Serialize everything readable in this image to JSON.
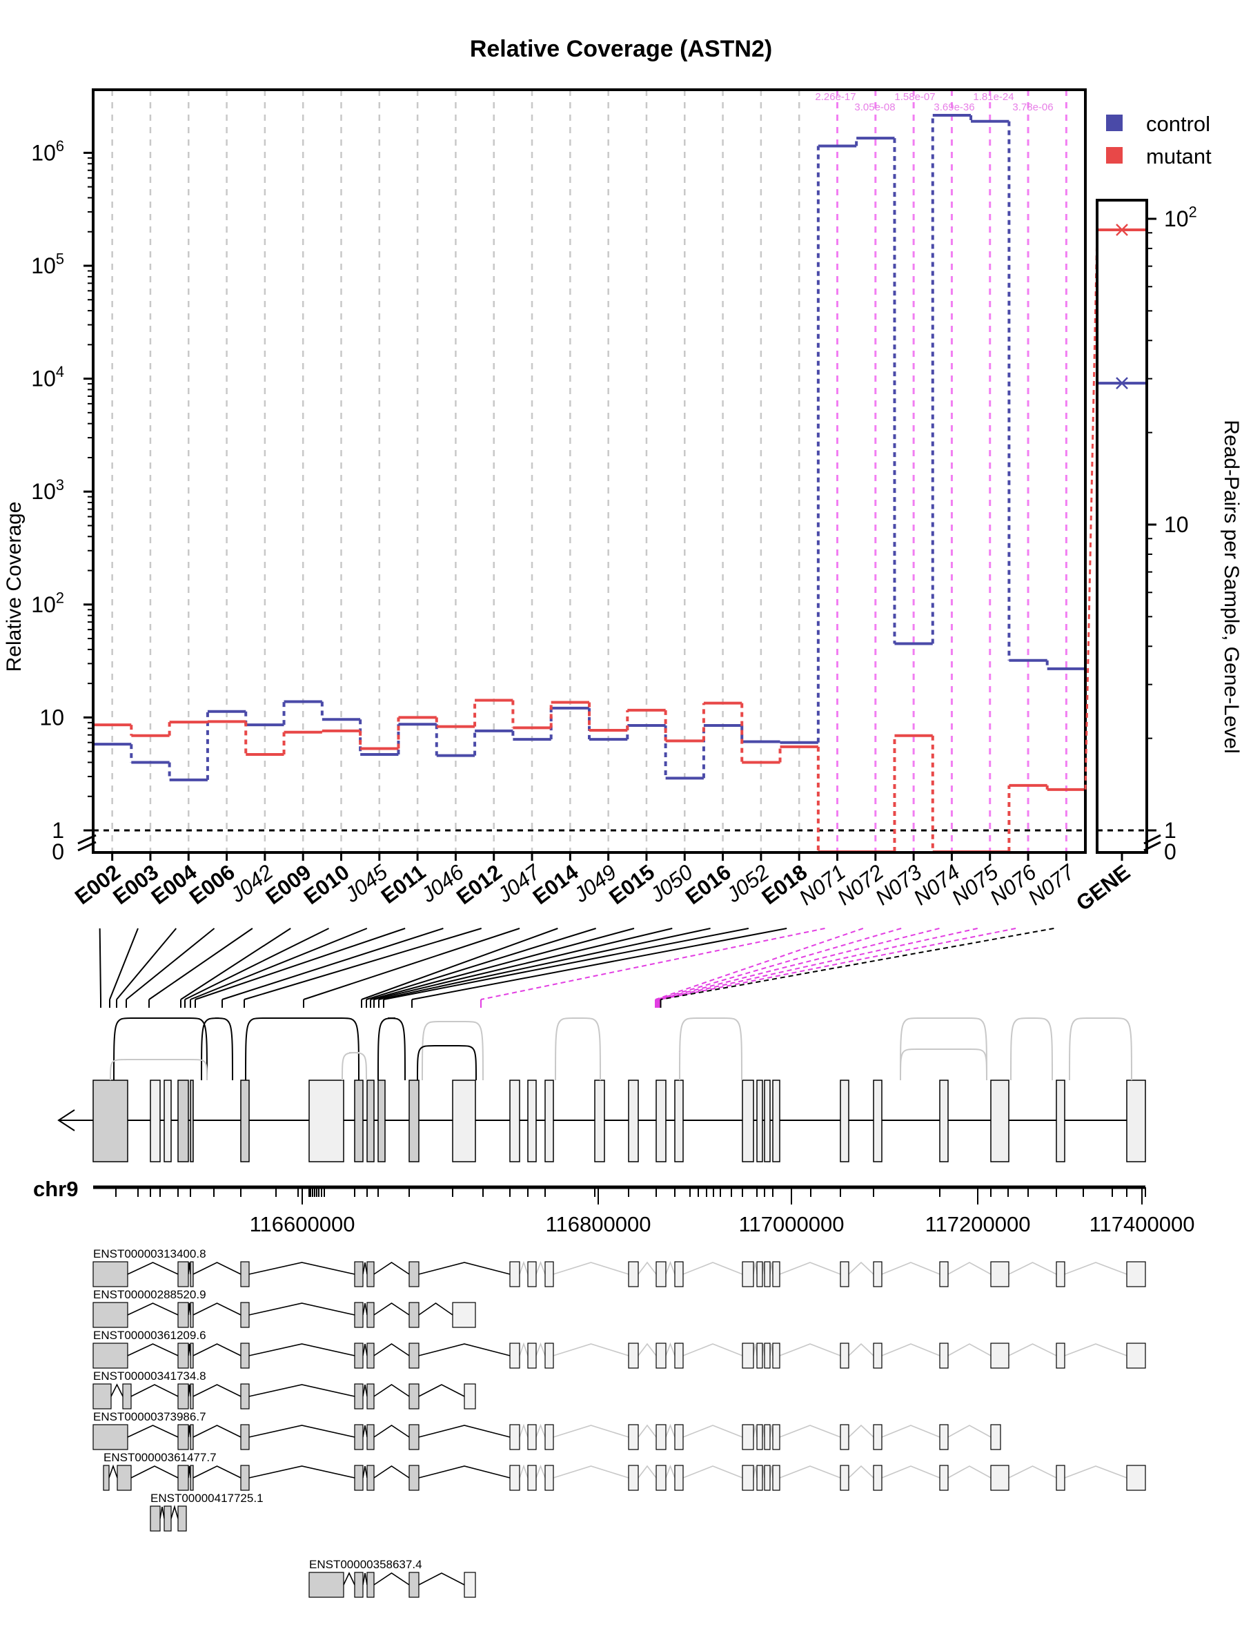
{
  "chart_data": [
    {
      "type": "line",
      "title": "Relative Coverage (ASTN2)",
      "ylabel": "Relative Coverage",
      "y_scale": "log",
      "y_ticks": [
        {
          "label": "1",
          "value": 1
        },
        {
          "label": "10",
          "value": 10
        },
        {
          "label": "10^2",
          "value": 100
        },
        {
          "label": "10^3",
          "value": 1000
        },
        {
          "label": "10^4",
          "value": 10000
        },
        {
          "label": "10^5",
          "value": 100000
        },
        {
          "label": "10^6",
          "value": 1000000
        }
      ],
      "y_zero_label": "0",
      "grid": "vertical dashed",
      "legend": "top-right",
      "categories": [
        "E002",
        "E003",
        "E004",
        "E006",
        "J042",
        "E009",
        "E010",
        "J045",
        "E011",
        "J046",
        "E012",
        "J047",
        "E014",
        "J049",
        "E015",
        "J050",
        "E016",
        "J052",
        "E018",
        "N071",
        "N072",
        "N073",
        "N074",
        "N075",
        "N076",
        "N077"
      ],
      "category_style": [
        "bold",
        "bold",
        "bold",
        "bold",
        "italic",
        "bold",
        "bold",
        "italic",
        "bold",
        "italic",
        "bold",
        "italic",
        "bold",
        "italic",
        "bold",
        "italic",
        "bold",
        "italic",
        "bold",
        "italic",
        "italic",
        "italic",
        "italic",
        "italic",
        "italic",
        "italic"
      ],
      "series": [
        {
          "name": "control",
          "color": "#4a4aa8",
          "values": [
            5.8,
            4.0,
            2.8,
            11.3,
            8.6,
            13.8,
            9.6,
            4.7,
            8.7,
            4.6,
            7.6,
            6.4,
            12.1,
            6.4,
            8.5,
            2.9,
            8.5,
            6.1,
            6.0,
            1150000,
            1350000,
            45,
            2150000,
            1900000,
            32,
            27
          ]
        },
        {
          "name": "mutant",
          "color": "#e84848",
          "values": [
            8.6,
            6.9,
            9.1,
            9.2,
            4.7,
            7.4,
            7.6,
            5.3,
            10.0,
            8.3,
            14.2,
            8.1,
            13.6,
            7.7,
            11.6,
            6.2,
            13.4,
            4.0,
            5.5,
            0,
            0,
            6.9,
            0,
            0,
            2.5,
            2.3
          ]
        }
      ],
      "pvalues": [
        "2.26e-17",
        "3.05e-08",
        "1.58e-07",
        "3.69e-36",
        "1.81e-24",
        "3.78e-06"
      ],
      "legend_items": [
        {
          "label": "control",
          "color": "#4a4aa8"
        },
        {
          "label": "mutant",
          "color": "#e84848"
        }
      ]
    },
    {
      "type": "scatter",
      "ylabel": "Read-Pairs per Sample, Gene-Level",
      "categories": [
        "GENE"
      ],
      "y_scale": "log",
      "y_ticks": [
        {
          "label": "1",
          "value": 1
        },
        {
          "label": "10",
          "value": 10
        },
        {
          "label": "10^2",
          "value": 100
        }
      ],
      "y_zero_label": "0",
      "series": [
        {
          "name": "control",
          "values": [
            29
          ]
        },
        {
          "name": "mutant",
          "values": [
            92
          ]
        }
      ]
    }
  ],
  "gene_track": {
    "chromosome": "chr9",
    "axis_labels": [
      "116600000",
      "116800000",
      "117000000",
      "117200000",
      "117400000"
    ]
  },
  "transcripts": [
    "ENST00000313400.8",
    "ENST00000288520.9",
    "ENST00000361209.6",
    "ENST00000341734.8",
    "ENST00000373986.7",
    "ENST00000361477.7",
    "ENST00000417725.1",
    "ENST00000358637.4"
  ]
}
